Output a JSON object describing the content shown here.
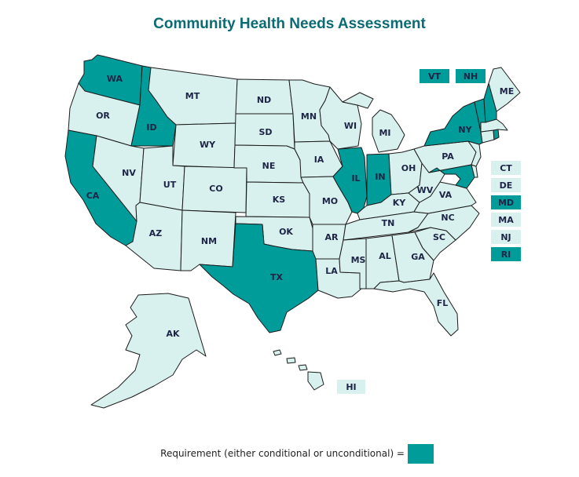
{
  "title": "Community Health Needs Assessment",
  "colors": {
    "required": "#009c9a",
    "not_required": "#d8f0ee",
    "border": "#1b1b1b",
    "label": "#1d2445"
  },
  "states": [
    {
      "abbr": "WA",
      "required": true
    },
    {
      "abbr": "OR",
      "required": false
    },
    {
      "abbr": "CA",
      "required": true
    },
    {
      "abbr": "ID",
      "required": true
    },
    {
      "abbr": "NV",
      "required": false
    },
    {
      "abbr": "MT",
      "required": false
    },
    {
      "abbr": "WY",
      "required": false
    },
    {
      "abbr": "UT",
      "required": false
    },
    {
      "abbr": "AZ",
      "required": false
    },
    {
      "abbr": "CO",
      "required": false
    },
    {
      "abbr": "NM",
      "required": false
    },
    {
      "abbr": "ND",
      "required": false
    },
    {
      "abbr": "SD",
      "required": false
    },
    {
      "abbr": "NE",
      "required": false
    },
    {
      "abbr": "KS",
      "required": false
    },
    {
      "abbr": "OK",
      "required": false
    },
    {
      "abbr": "TX",
      "required": true
    },
    {
      "abbr": "MN",
      "required": false
    },
    {
      "abbr": "IA",
      "required": false
    },
    {
      "abbr": "MO",
      "required": false
    },
    {
      "abbr": "AR",
      "required": false
    },
    {
      "abbr": "LA",
      "required": false
    },
    {
      "abbr": "WI",
      "required": false
    },
    {
      "abbr": "IL",
      "required": true
    },
    {
      "abbr": "MS",
      "required": false
    },
    {
      "abbr": "MI",
      "required": false
    },
    {
      "abbr": "IN",
      "required": true
    },
    {
      "abbr": "KY",
      "required": false
    },
    {
      "abbr": "TN",
      "required": false
    },
    {
      "abbr": "AL",
      "required": false
    },
    {
      "abbr": "OH",
      "required": false
    },
    {
      "abbr": "WV",
      "required": false
    },
    {
      "abbr": "GA",
      "required": false
    },
    {
      "abbr": "FL",
      "required": false
    },
    {
      "abbr": "SC",
      "required": false
    },
    {
      "abbr": "NC",
      "required": false
    },
    {
      "abbr": "VA",
      "required": false
    },
    {
      "abbr": "PA",
      "required": false
    },
    {
      "abbr": "NY",
      "required": true
    },
    {
      "abbr": "VT",
      "required": true
    },
    {
      "abbr": "NH",
      "required": true
    },
    {
      "abbr": "ME",
      "required": false
    },
    {
      "abbr": "MA",
      "required": false
    },
    {
      "abbr": "RI",
      "required": true
    },
    {
      "abbr": "CT",
      "required": false
    },
    {
      "abbr": "NJ",
      "required": false
    },
    {
      "abbr": "DE",
      "required": false
    },
    {
      "abbr": "MD",
      "required": true
    },
    {
      "abbr": "AK",
      "required": false
    },
    {
      "abbr": "HI",
      "required": false
    }
  ],
  "legend": {
    "text": "Requirement (either conditional or unconditional) ="
  }
}
